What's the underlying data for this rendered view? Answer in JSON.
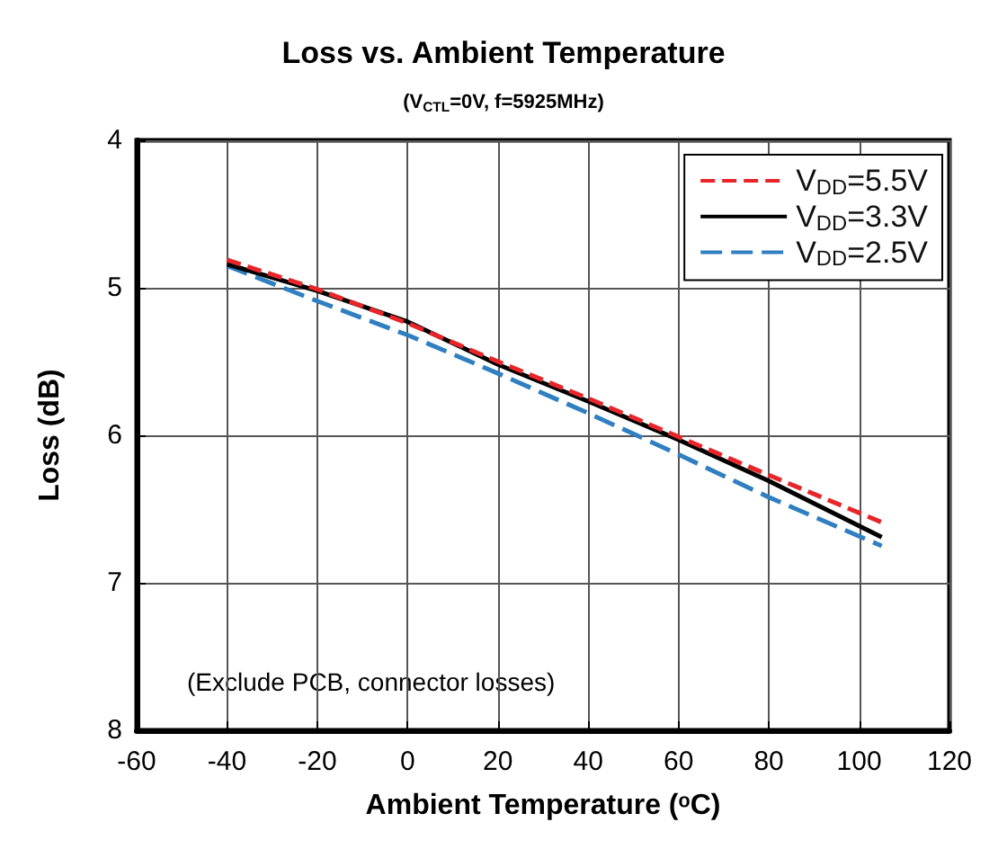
{
  "chart_data": {
    "type": "line",
    "title": "Loss vs. Ambient Temperature",
    "subtitle": "(V$_{CTL}$=0V, f=5925MHz)",
    "xlabel": "Ambient Temperature (ᵒC)",
    "ylabel": "Loss (dB)",
    "annotations": [
      "(Exclude PCB, connector losses)"
    ],
    "x": [
      -40,
      -20,
      0,
      20,
      40,
      60,
      80,
      105
    ],
    "series": [
      {
        "name": "V$_{DD}$=5.5V",
        "color": "#e8262a",
        "line_style": "dashed",
        "values": [
          4.81,
          5.01,
          5.24,
          5.5,
          5.75,
          6.01,
          6.27,
          6.59
        ]
      },
      {
        "name": "V$_{DD}$=3.3V",
        "color": "#000000",
        "line_style": "solid",
        "values": [
          4.84,
          5.02,
          5.23,
          5.52,
          5.77,
          6.03,
          6.31,
          6.69
        ]
      },
      {
        "name": "V$_{DD}$=2.5V",
        "color": "#2f7fc1",
        "line_style": "dashed",
        "values": [
          4.85,
          5.09,
          5.32,
          5.58,
          5.85,
          6.13,
          6.42,
          6.75
        ]
      }
    ],
    "xlim": [
      -60,
      120
    ],
    "xticks": [
      -60,
      -40,
      -20,
      0,
      20,
      40,
      60,
      80,
      100,
      120
    ],
    "ylim": [
      8,
      4
    ],
    "yticks": [
      4,
      5,
      6,
      7,
      8
    ],
    "grid": true,
    "legend": "top right",
    "marker": "none"
  }
}
